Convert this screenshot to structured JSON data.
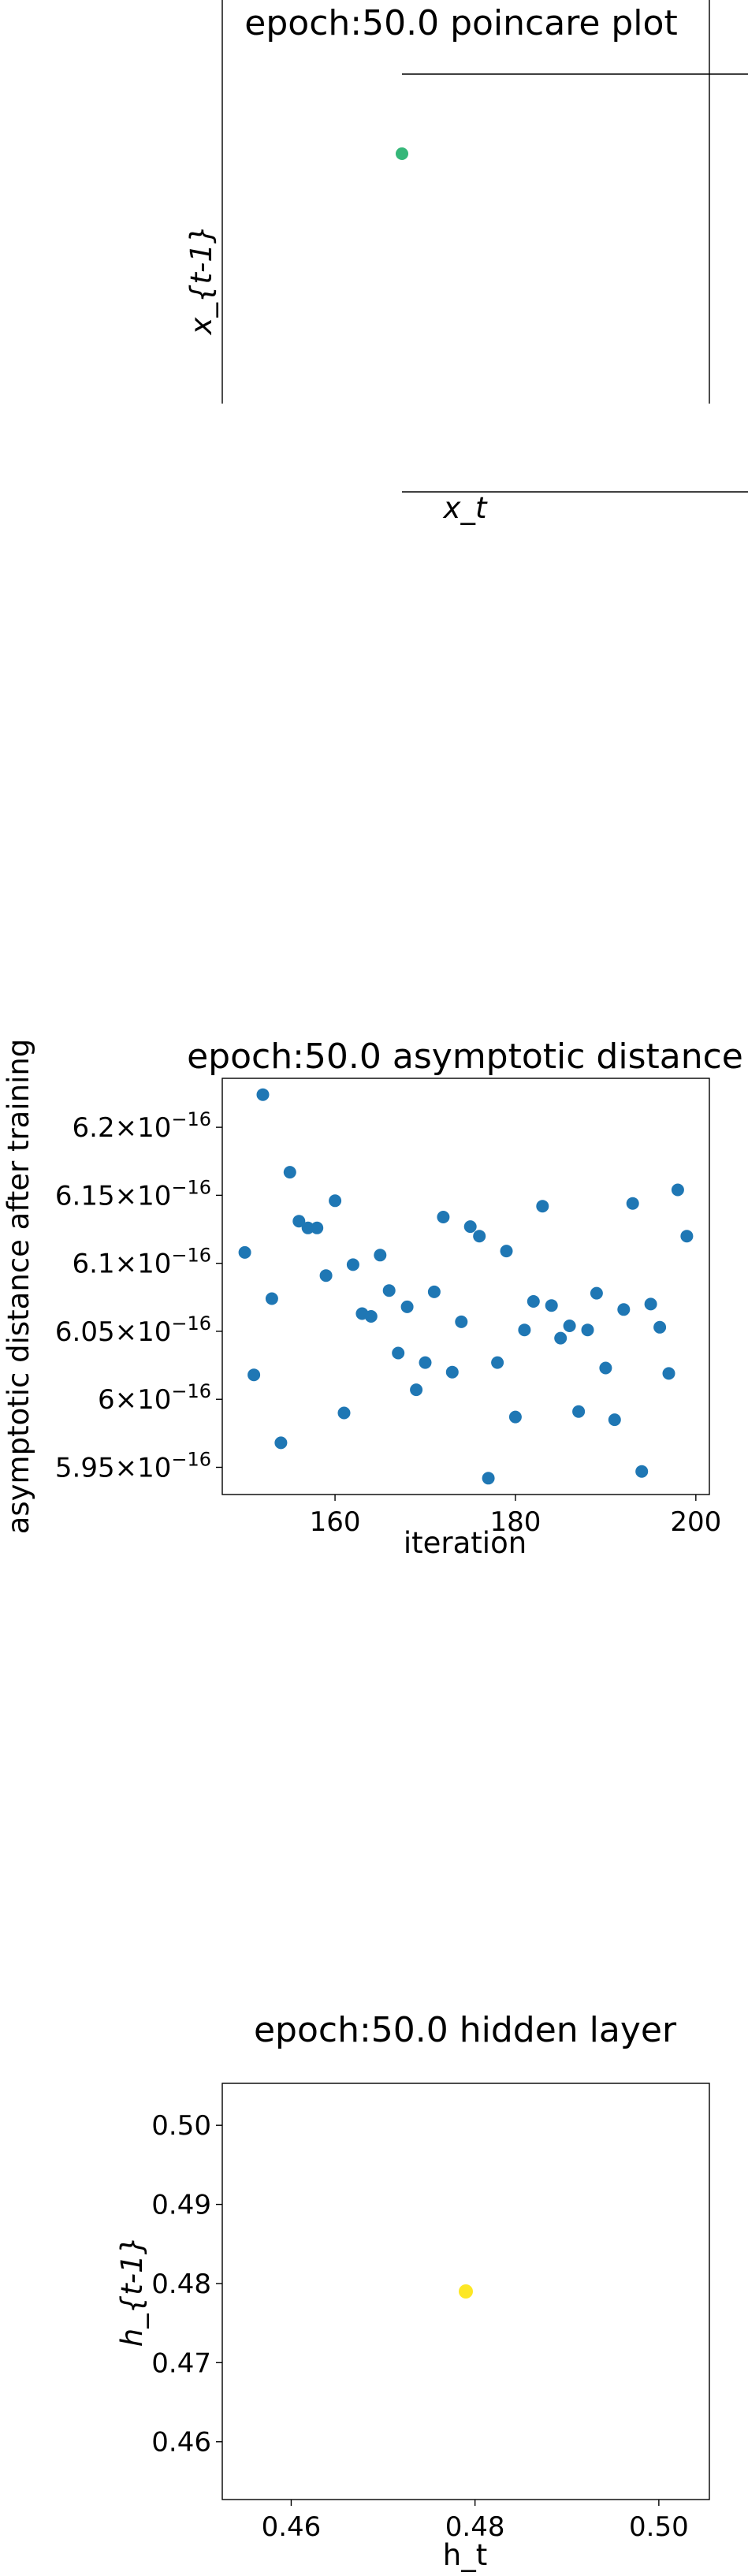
{
  "charts": [
    {
      "type": "scatter",
      "title": "epoch:50.0 poincare plot",
      "xlabel": "x_t",
      "ylabel": "x_{t-1}",
      "point_color": "#35b779",
      "points": [
        {
          "x": 0,
          "y": 0
        }
      ]
    },
    {
      "type": "scatter",
      "title": "epoch:50.0 asymptotic distance",
      "xlabel": "iteration",
      "ylabel": "asymptotic distance after training",
      "point_color": "#1f77b4",
      "xlim": [
        147.5,
        201.5
      ],
      "ylim": [
        5.93e-16,
        6.236e-16
      ],
      "xticks": [
        {
          "value": 160,
          "label": "160"
        },
        {
          "value": 180,
          "label": "180"
        },
        {
          "value": 200,
          "label": "200"
        }
      ],
      "yticks": [
        {
          "value": 5.95e-16,
          "mantissa": "5.95",
          "exponent": "−16"
        },
        {
          "value": 6e-16,
          "mantissa": "6",
          "exponent": "−16"
        },
        {
          "value": 6.05e-16,
          "mantissa": "6.05",
          "exponent": "−16"
        },
        {
          "value": 6.1e-16,
          "mantissa": "6.1",
          "exponent": "−16"
        },
        {
          "value": 6.15e-16,
          "mantissa": "6.15",
          "exponent": "−16"
        },
        {
          "value": 6.2e-16,
          "mantissa": "6.2",
          "exponent": "−16"
        }
      ],
      "x": [
        150,
        151,
        152,
        153,
        154,
        155,
        156,
        157,
        158,
        159,
        160,
        161,
        162,
        163,
        164,
        165,
        166,
        167,
        168,
        169,
        170,
        171,
        172,
        173,
        174,
        175,
        176,
        177,
        178,
        179,
        180,
        181,
        182,
        183,
        184,
        185,
        186,
        187,
        188,
        189,
        190,
        191,
        192,
        193,
        194,
        195,
        196,
        197,
        198,
        199
      ],
      "y": [
        6.108e-16,
        6.018e-16,
        6.224e-16,
        6.074e-16,
        5.968e-16,
        6.167e-16,
        6.131e-16,
        6.126e-16,
        6.126e-16,
        6.091e-16,
        6.146e-16,
        5.99e-16,
        6.099e-16,
        6.063e-16,
        6.061e-16,
        6.106e-16,
        6.08e-16,
        6.034e-16,
        6.068e-16,
        6.007e-16,
        6.027e-16,
        6.079e-16,
        6.134e-16,
        6.02e-16,
        6.057e-16,
        6.127e-16,
        6.12e-16,
        5.942e-16,
        6.027e-16,
        6.109e-16,
        5.987e-16,
        6.051e-16,
        6.072e-16,
        6.142e-16,
        6.069e-16,
        6.045e-16,
        6.054e-16,
        5.991e-16,
        6.051e-16,
        6.078e-16,
        6.023e-16,
        5.985e-16,
        6.066e-16,
        6.144e-16,
        5.947e-16,
        6.07e-16,
        6.053e-16,
        6.019e-16,
        6.154e-16,
        6.12e-16
      ]
    },
    {
      "type": "scatter",
      "title": "epoch:50.0 hidden layer",
      "xlabel": "h_t",
      "ylabel": "h_{t-1}",
      "point_color": "#fde725",
      "xlim": [
        0.4525,
        0.5055
      ],
      "ylim": [
        0.4527,
        0.5053
      ],
      "xticks": [
        {
          "value": 0.46,
          "label": "0.46"
        },
        {
          "value": 0.48,
          "label": "0.48"
        },
        {
          "value": 0.5,
          "label": "0.50"
        }
      ],
      "yticks": [
        {
          "value": 0.46,
          "label": "0.46"
        },
        {
          "value": 0.47,
          "label": "0.47"
        },
        {
          "value": 0.48,
          "label": "0.48"
        },
        {
          "value": 0.49,
          "label": "0.49"
        },
        {
          "value": 0.5,
          "label": "0.50"
        }
      ],
      "points": [
        {
          "x": 0.479,
          "y": 0.479
        }
      ]
    }
  ]
}
